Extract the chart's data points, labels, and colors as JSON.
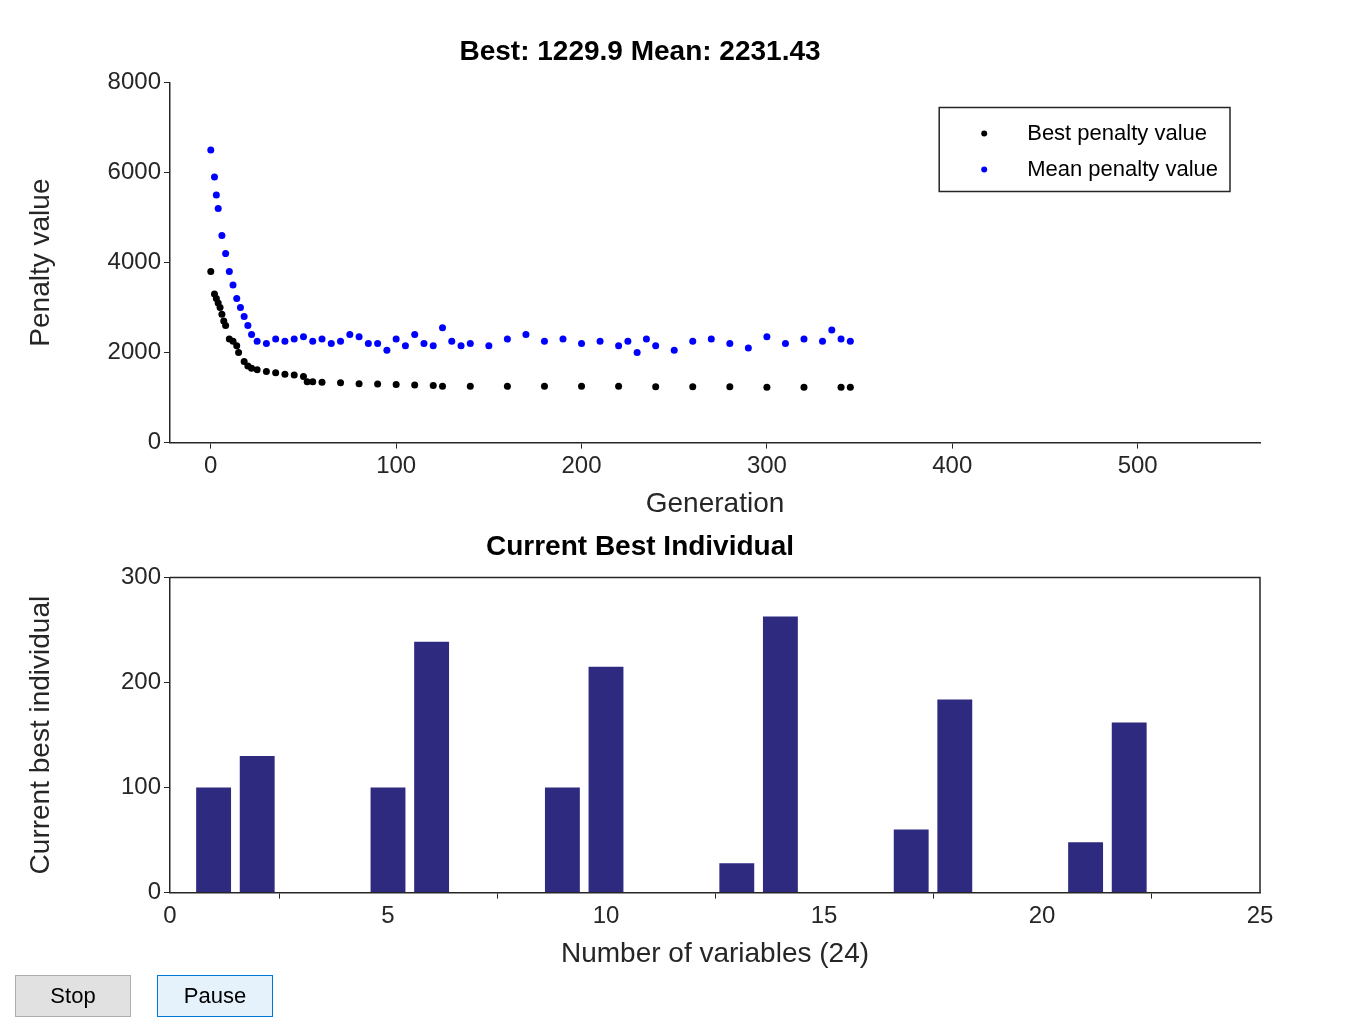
{
  "chart_data": [
    {
      "type": "scatter",
      "title": "Best: 1229.9 Mean: 2231.43",
      "xlabel": "Generation",
      "ylabel": "Penalty value",
      "xlim": [
        -22,
        566
      ],
      "xticks": [
        0,
        100,
        200,
        300,
        400,
        500
      ],
      "ylim": [
        0,
        8000
      ],
      "yticks": [
        0,
        2000,
        4000,
        6000,
        8000
      ],
      "grid": false,
      "legend": "top right",
      "marker": "circle",
      "series": [
        {
          "name": "Best penalty value",
          "color": "#000000",
          "x": [
            0,
            2,
            3,
            4,
            5,
            6,
            7,
            8,
            10,
            12,
            14,
            15,
            18,
            20,
            22,
            25,
            30,
            35,
            40,
            45,
            50,
            52,
            55,
            60,
            70,
            80,
            90,
            100,
            110,
            120,
            125,
            140,
            160,
            180,
            200,
            220,
            240,
            260,
            280,
            300,
            320,
            340,
            345
          ],
          "values": [
            3800,
            3300,
            3200,
            3100,
            3000,
            2850,
            2700,
            2600,
            2300,
            2250,
            2150,
            2000,
            1800,
            1700,
            1650,
            1620,
            1580,
            1550,
            1520,
            1500,
            1470,
            1350,
            1350,
            1340,
            1330,
            1310,
            1300,
            1290,
            1280,
            1270,
            1250,
            1250,
            1250,
            1250,
            1250,
            1250,
            1240,
            1240,
            1240,
            1230,
            1230,
            1230,
            1230
          ]
        },
        {
          "name": "Mean penalty value",
          "color": "#0000ff",
          "x": [
            0,
            2,
            3,
            4,
            6,
            8,
            10,
            12,
            14,
            16,
            18,
            20,
            22,
            25,
            30,
            35,
            40,
            45,
            50,
            55,
            60,
            65,
            70,
            75,
            80,
            85,
            90,
            95,
            100,
            105,
            110,
            115,
            120,
            125,
            130,
            135,
            140,
            150,
            160,
            170,
            180,
            190,
            200,
            210,
            220,
            225,
            230,
            235,
            240,
            250,
            260,
            270,
            280,
            290,
            300,
            310,
            320,
            330,
            335,
            340,
            345
          ],
          "values": [
            6500,
            5900,
            5500,
            5200,
            4600,
            4200,
            3800,
            3500,
            3200,
            3000,
            2800,
            2600,
            2400,
            2250,
            2200,
            2300,
            2250,
            2300,
            2350,
            2250,
            2300,
            2200,
            2250,
            2400,
            2350,
            2200,
            2200,
            2050,
            2300,
            2150,
            2400,
            2200,
            2150,
            2550,
            2250,
            2150,
            2200,
            2150,
            2300,
            2400,
            2250,
            2300,
            2200,
            2250,
            2150,
            2250,
            2000,
            2300,
            2150,
            2050,
            2250,
            2300,
            2200,
            2100,
            2350,
            2200,
            2300,
            2250,
            2500,
            2300,
            2250
          ]
        }
      ]
    },
    {
      "type": "bar",
      "title": "Current Best Individual",
      "xlabel": "Number of variables (24)",
      "ylabel": "Current best individual",
      "x": [
        1,
        2,
        3,
        4,
        5,
        6,
        7,
        8,
        9,
        10,
        11,
        12,
        13,
        14,
        15,
        16,
        17,
        18,
        19,
        20,
        21,
        22,
        23,
        24
      ],
      "values": [
        100,
        130,
        0,
        0,
        100,
        239,
        0,
        0,
        100,
        215,
        0,
        0,
        28,
        263,
        0,
        0,
        60,
        184,
        0,
        0,
        48,
        162,
        0,
        0
      ],
      "color": "#2e2a80",
      "xlim": [
        0,
        25
      ],
      "xticks": [
        0,
        5,
        10,
        15,
        20,
        25
      ],
      "ylim": [
        0,
        300
      ],
      "yticks": [
        0,
        100,
        200,
        300
      ],
      "grid": false,
      "annotations": [
        "Stop",
        "Pause"
      ]
    }
  ]
}
